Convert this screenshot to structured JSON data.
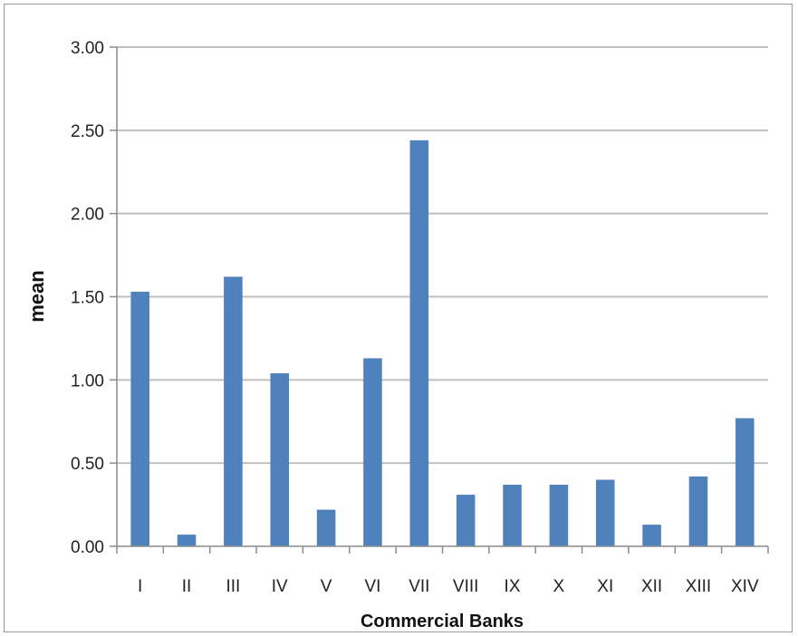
{
  "chart_data": {
    "type": "bar",
    "title": "",
    "xlabel": "Commercial Banks",
    "ylabel": "mean",
    "categories": [
      "I",
      "II",
      "III",
      "IV",
      "V",
      "VI",
      "VII",
      "VIII",
      "IX",
      "X",
      "XI",
      "XII",
      "XIII",
      "XIV"
    ],
    "values": [
      1.53,
      0.07,
      1.62,
      1.04,
      0.22,
      1.13,
      2.44,
      0.31,
      0.37,
      0.37,
      0.4,
      0.13,
      0.42,
      0.77
    ],
    "ylim": [
      0,
      3.0
    ],
    "yticks": [
      "0.00",
      "0.50",
      "1.00",
      "1.50",
      "2.00",
      "2.50",
      "3.00"
    ],
    "grid": true,
    "legend": "none",
    "bar_color": "#4f81bd",
    "grid_color": "#bfbfbf"
  }
}
